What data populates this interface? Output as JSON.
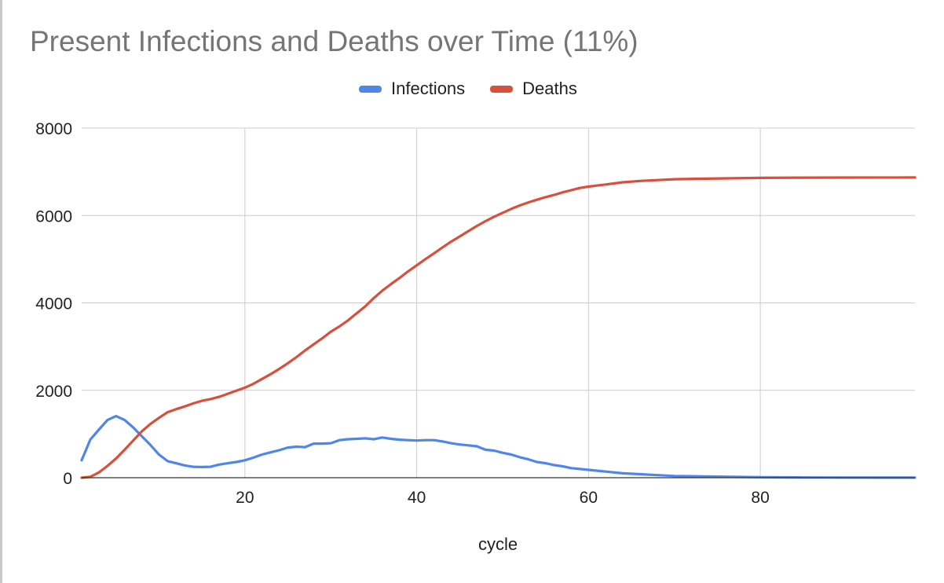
{
  "chart_data": {
    "type": "line",
    "title": "Present Infections and Deaths over Time (11%)",
    "xlabel": "cycle",
    "ylabel": "",
    "xlim": [
      1,
      98
    ],
    "ylim": [
      0,
      8000
    ],
    "x_ticks": [
      20,
      40,
      60,
      80
    ],
    "y_ticks": [
      0,
      2000,
      4000,
      6000,
      8000
    ],
    "grid": true,
    "legend_position": "top",
    "series": [
      {
        "name": "Infections",
        "color": "#4f86ec",
        "points": [
          [
            1,
            400
          ],
          [
            2,
            870
          ],
          [
            3,
            1100
          ],
          [
            4,
            1320
          ],
          [
            5,
            1410
          ],
          [
            6,
            1320
          ],
          [
            7,
            1150
          ],
          [
            8,
            950
          ],
          [
            9,
            750
          ],
          [
            10,
            530
          ],
          [
            11,
            380
          ],
          [
            12,
            330
          ],
          [
            13,
            280
          ],
          [
            14,
            250
          ],
          [
            15,
            245
          ],
          [
            16,
            250
          ],
          [
            17,
            300
          ],
          [
            18,
            330
          ],
          [
            19,
            360
          ],
          [
            20,
            400
          ],
          [
            21,
            460
          ],
          [
            22,
            530
          ],
          [
            23,
            580
          ],
          [
            24,
            630
          ],
          [
            25,
            690
          ],
          [
            26,
            710
          ],
          [
            27,
            700
          ],
          [
            28,
            780
          ],
          [
            29,
            780
          ],
          [
            30,
            790
          ],
          [
            31,
            860
          ],
          [
            32,
            880
          ],
          [
            33,
            890
          ],
          [
            34,
            900
          ],
          [
            35,
            880
          ],
          [
            36,
            920
          ],
          [
            37,
            890
          ],
          [
            38,
            870
          ],
          [
            39,
            860
          ],
          [
            40,
            850
          ],
          [
            41,
            860
          ],
          [
            42,
            860
          ],
          [
            43,
            830
          ],
          [
            44,
            790
          ],
          [
            45,
            760
          ],
          [
            46,
            740
          ],
          [
            47,
            720
          ],
          [
            48,
            640
          ],
          [
            49,
            620
          ],
          [
            50,
            570
          ],
          [
            51,
            530
          ],
          [
            52,
            470
          ],
          [
            53,
            420
          ],
          [
            54,
            360
          ],
          [
            55,
            330
          ],
          [
            56,
            290
          ],
          [
            57,
            260
          ],
          [
            58,
            220
          ],
          [
            59,
            200
          ],
          [
            60,
            180
          ],
          [
            62,
            140
          ],
          [
            64,
            100
          ],
          [
            66,
            80
          ],
          [
            68,
            60
          ],
          [
            70,
            40
          ],
          [
            72,
            35
          ],
          [
            75,
            25
          ],
          [
            80,
            12
          ],
          [
            85,
            6
          ],
          [
            90,
            3
          ],
          [
            95,
            2
          ],
          [
            98,
            1
          ]
        ]
      },
      {
        "name": "Deaths",
        "color": "#d94f3b",
        "points": [
          [
            1,
            0
          ],
          [
            2,
            20
          ],
          [
            3,
            120
          ],
          [
            4,
            270
          ],
          [
            5,
            440
          ],
          [
            6,
            640
          ],
          [
            7,
            850
          ],
          [
            8,
            1060
          ],
          [
            9,
            1230
          ],
          [
            10,
            1370
          ],
          [
            11,
            1500
          ],
          [
            12,
            1570
          ],
          [
            13,
            1630
          ],
          [
            14,
            1700
          ],
          [
            15,
            1760
          ],
          [
            16,
            1800
          ],
          [
            17,
            1850
          ],
          [
            18,
            1920
          ],
          [
            19,
            1990
          ],
          [
            20,
            2060
          ],
          [
            21,
            2150
          ],
          [
            22,
            2260
          ],
          [
            23,
            2370
          ],
          [
            24,
            2490
          ],
          [
            25,
            2620
          ],
          [
            26,
            2760
          ],
          [
            27,
            2910
          ],
          [
            28,
            3050
          ],
          [
            29,
            3190
          ],
          [
            30,
            3340
          ],
          [
            31,
            3460
          ],
          [
            32,
            3600
          ],
          [
            33,
            3760
          ],
          [
            34,
            3920
          ],
          [
            35,
            4110
          ],
          [
            36,
            4280
          ],
          [
            37,
            4430
          ],
          [
            38,
            4570
          ],
          [
            39,
            4720
          ],
          [
            40,
            4860
          ],
          [
            41,
            5000
          ],
          [
            42,
            5130
          ],
          [
            43,
            5270
          ],
          [
            44,
            5400
          ],
          [
            45,
            5520
          ],
          [
            46,
            5640
          ],
          [
            47,
            5760
          ],
          [
            48,
            5870
          ],
          [
            49,
            5970
          ],
          [
            50,
            6060
          ],
          [
            51,
            6150
          ],
          [
            52,
            6230
          ],
          [
            53,
            6300
          ],
          [
            54,
            6360
          ],
          [
            55,
            6420
          ],
          [
            56,
            6470
          ],
          [
            57,
            6530
          ],
          [
            58,
            6580
          ],
          [
            59,
            6630
          ],
          [
            60,
            6660
          ],
          [
            62,
            6710
          ],
          [
            64,
            6760
          ],
          [
            66,
            6790
          ],
          [
            68,
            6810
          ],
          [
            70,
            6830
          ],
          [
            73,
            6840
          ],
          [
            76,
            6850
          ],
          [
            80,
            6860
          ],
          [
            85,
            6865
          ],
          [
            90,
            6868
          ],
          [
            98,
            6870
          ]
        ]
      }
    ]
  }
}
